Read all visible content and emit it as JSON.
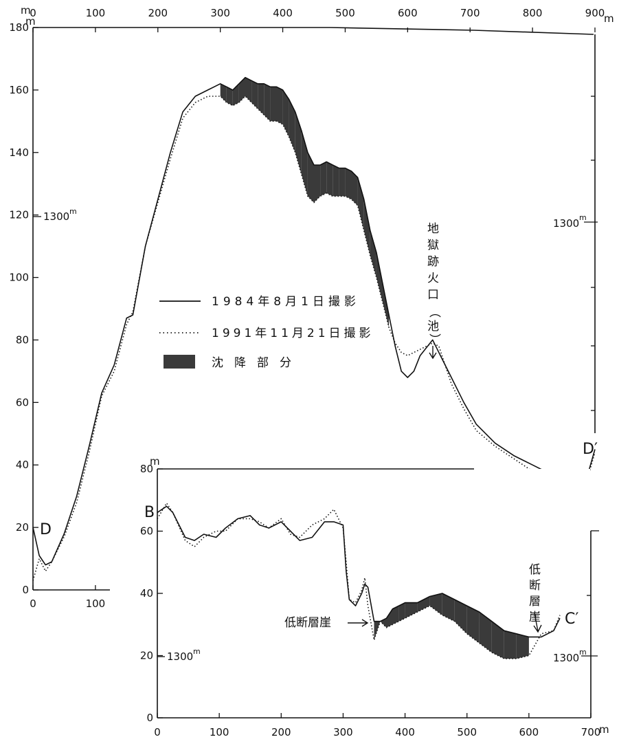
{
  "chart_data": [
    {
      "type": "line",
      "profile_start_label": "D",
      "profile_end_label": "D′",
      "x_unit": "m",
      "y_unit": "m",
      "xlim": [
        0,
        900
      ],
      "ylim": [
        0,
        180
      ],
      "x_ticks": [
        "0",
        "100",
        "200",
        "300",
        "400",
        "500",
        "600",
        "700",
        "800",
        "900"
      ],
      "x_ticks_bottom": [
        "0",
        "100"
      ],
      "y_ticks": [
        "0",
        "20",
        "40",
        "60",
        "80",
        "100",
        "120",
        "140",
        "160",
        "180"
      ],
      "baseline_label": "1300",
      "baseline_label_right": "1300",
      "x": [
        0,
        10,
        20,
        30,
        50,
        70,
        90,
        110,
        130,
        150,
        160,
        180,
        200,
        220,
        240,
        260,
        280,
        300,
        310,
        320,
        330,
        340,
        350,
        360,
        370,
        380,
        390,
        400,
        410,
        420,
        430,
        440,
        450,
        460,
        470,
        480,
        490,
        500,
        510,
        520,
        530,
        540,
        550,
        560,
        570,
        580,
        590,
        600,
        610,
        620,
        640,
        650,
        670,
        690,
        710,
        740,
        770,
        800,
        830,
        850,
        870,
        880,
        890,
        900
      ],
      "series": [
        {
          "name": "1984年8月1日撮影",
          "line_style": "solid",
          "values": [
            20,
            11,
            8,
            9,
            18,
            30,
            46,
            63,
            72,
            87,
            88,
            110,
            125,
            140,
            153,
            158,
            160,
            162,
            161,
            160,
            162,
            164,
            163,
            162,
            162,
            161,
            161,
            160,
            157,
            153,
            147,
            140,
            136,
            136,
            137,
            136,
            135,
            135,
            134,
            132,
            125,
            115,
            108,
            98,
            88,
            78,
            70,
            68,
            70,
            75,
            80,
            76,
            68,
            60,
            53,
            47,
            43,
            40,
            37,
            35,
            36,
            35,
            38,
            45
          ]
        },
        {
          "name": "1991年11月21日撮影",
          "line_style": "dotted",
          "values": [
            3,
            10,
            6,
            9,
            17,
            28,
            44,
            62,
            70,
            85,
            89,
            110,
            124,
            138,
            151,
            156,
            158,
            158,
            156,
            155,
            156,
            158,
            156,
            154,
            152,
            150,
            150,
            149,
            145,
            140,
            133,
            126,
            124,
            126,
            127,
            126,
            126,
            126,
            125,
            123,
            115,
            107,
            100,
            92,
            84,
            79,
            76,
            75,
            76,
            77,
            79,
            78,
            66,
            58,
            51,
            46,
            42,
            38,
            35,
            38,
            35,
            36,
            37,
            44
          ]
        }
      ],
      "shaded_label": "沈降部分",
      "annotations": [
        "地獄跡火口（池）"
      ]
    },
    {
      "type": "line",
      "profile_start_label": "B",
      "profile_end_label": "C′",
      "x_unit": "m",
      "y_unit": "m",
      "xlim": [
        0,
        700
      ],
      "ylim": [
        0,
        80
      ],
      "x_ticks": [
        "0",
        "100",
        "200",
        "300",
        "400",
        "500",
        "600",
        "700"
      ],
      "y_ticks": [
        "0",
        "20",
        "40",
        "60",
        "80"
      ],
      "baseline_label": "1300",
      "baseline_label_right": "1300",
      "x": [
        0,
        15,
        25,
        45,
        60,
        75,
        95,
        110,
        130,
        150,
        165,
        180,
        200,
        215,
        230,
        250,
        270,
        285,
        300,
        305,
        310,
        320,
        330,
        335,
        340,
        350,
        360,
        370,
        380,
        390,
        400,
        420,
        440,
        460,
        480,
        500,
        520,
        540,
        560,
        580,
        600,
        620,
        640,
        650
      ],
      "series": [
        {
          "name": "1984年8月1日撮影",
          "line_style": "solid",
          "values": [
            66,
            68,
            66,
            58,
            57,
            59,
            58,
            61,
            64,
            65,
            62,
            61,
            63,
            60,
            57,
            58,
            63,
            63,
            62,
            47,
            38,
            36,
            40,
            43,
            42,
            31,
            31,
            32,
            35,
            36,
            37,
            37,
            39,
            40,
            38,
            36,
            34,
            31,
            28,
            27,
            26,
            26,
            28,
            32
          ]
        },
        {
          "name": "1991年11月21日撮影",
          "line_style": "dotted",
          "values": [
            64,
            69,
            66,
            57,
            55,
            58,
            60,
            60,
            64,
            64,
            63,
            61,
            64,
            59,
            58,
            62,
            64,
            67,
            61,
            50,
            38,
            37,
            41,
            45,
            36,
            25,
            31,
            29,
            30,
            31,
            32,
            34,
            36,
            33,
            31,
            27,
            24,
            21,
            19,
            19,
            20,
            27,
            28,
            33
          ]
        }
      ],
      "annotations": [
        "低断層崖",
        "低断層崖"
      ]
    }
  ]
}
